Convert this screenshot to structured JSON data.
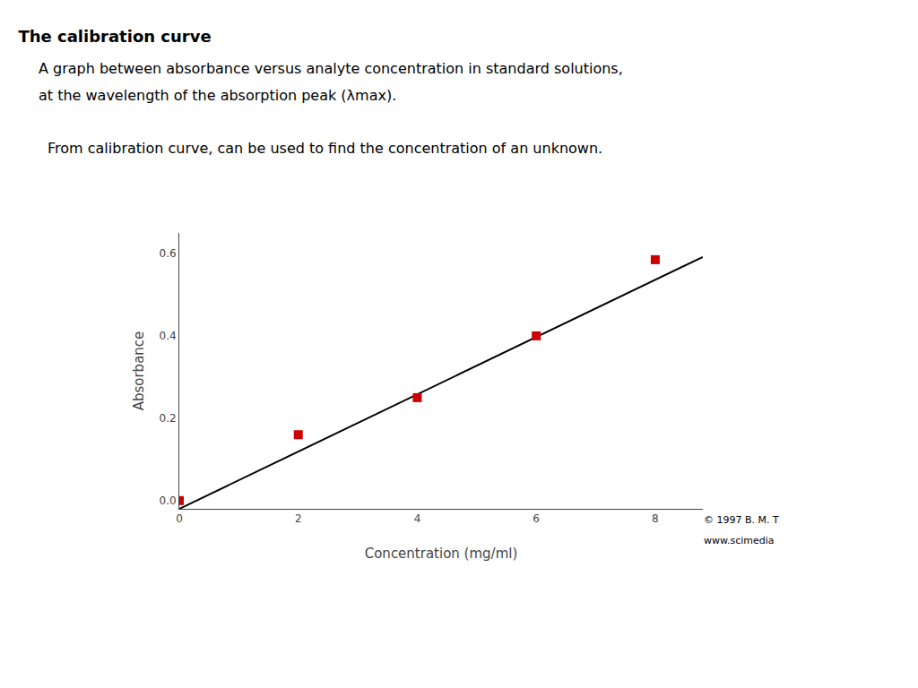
{
  "chart_data": {
    "type": "scatter",
    "title": "The calibration curve",
    "subtitle": [
      "A graph between absorbance versus analyte concentration in standard solutions,",
      "at the wavelength of the absorption peak (λmax)."
    ],
    "annotations": [
      "From calibration curve, can be used to find the concentration of an unknown.",
      "© 1997 B. M. T",
      "www.scimedia"
    ],
    "xlabel": "Concentration (mg/ml)",
    "ylabel": "Absorbance",
    "series": [
      {
        "type": "line",
        "x": [
          0,
          8.8
        ],
        "values": [
          -0.02,
          0.5916
        ],
        "color": "#000000",
        "line_style": "solid"
      },
      {
        "type": "scatter",
        "x": [
          0,
          2,
          4,
          6,
          8
        ],
        "values": [
          0.0,
          0.16,
          0.25,
          0.4,
          0.585
        ],
        "color": "#cc0000",
        "marker": "square"
      }
    ],
    "xlim": [
      0,
      8.8
    ],
    "ylim": [
      -0.02,
      0.65
    ],
    "xticks": [
      0,
      2,
      4,
      6,
      8
    ],
    "yticks": [
      {
        "value": 0.0,
        "label": "0.0"
      },
      0.2,
      0.4,
      0.6
    ],
    "grid": false
  }
}
